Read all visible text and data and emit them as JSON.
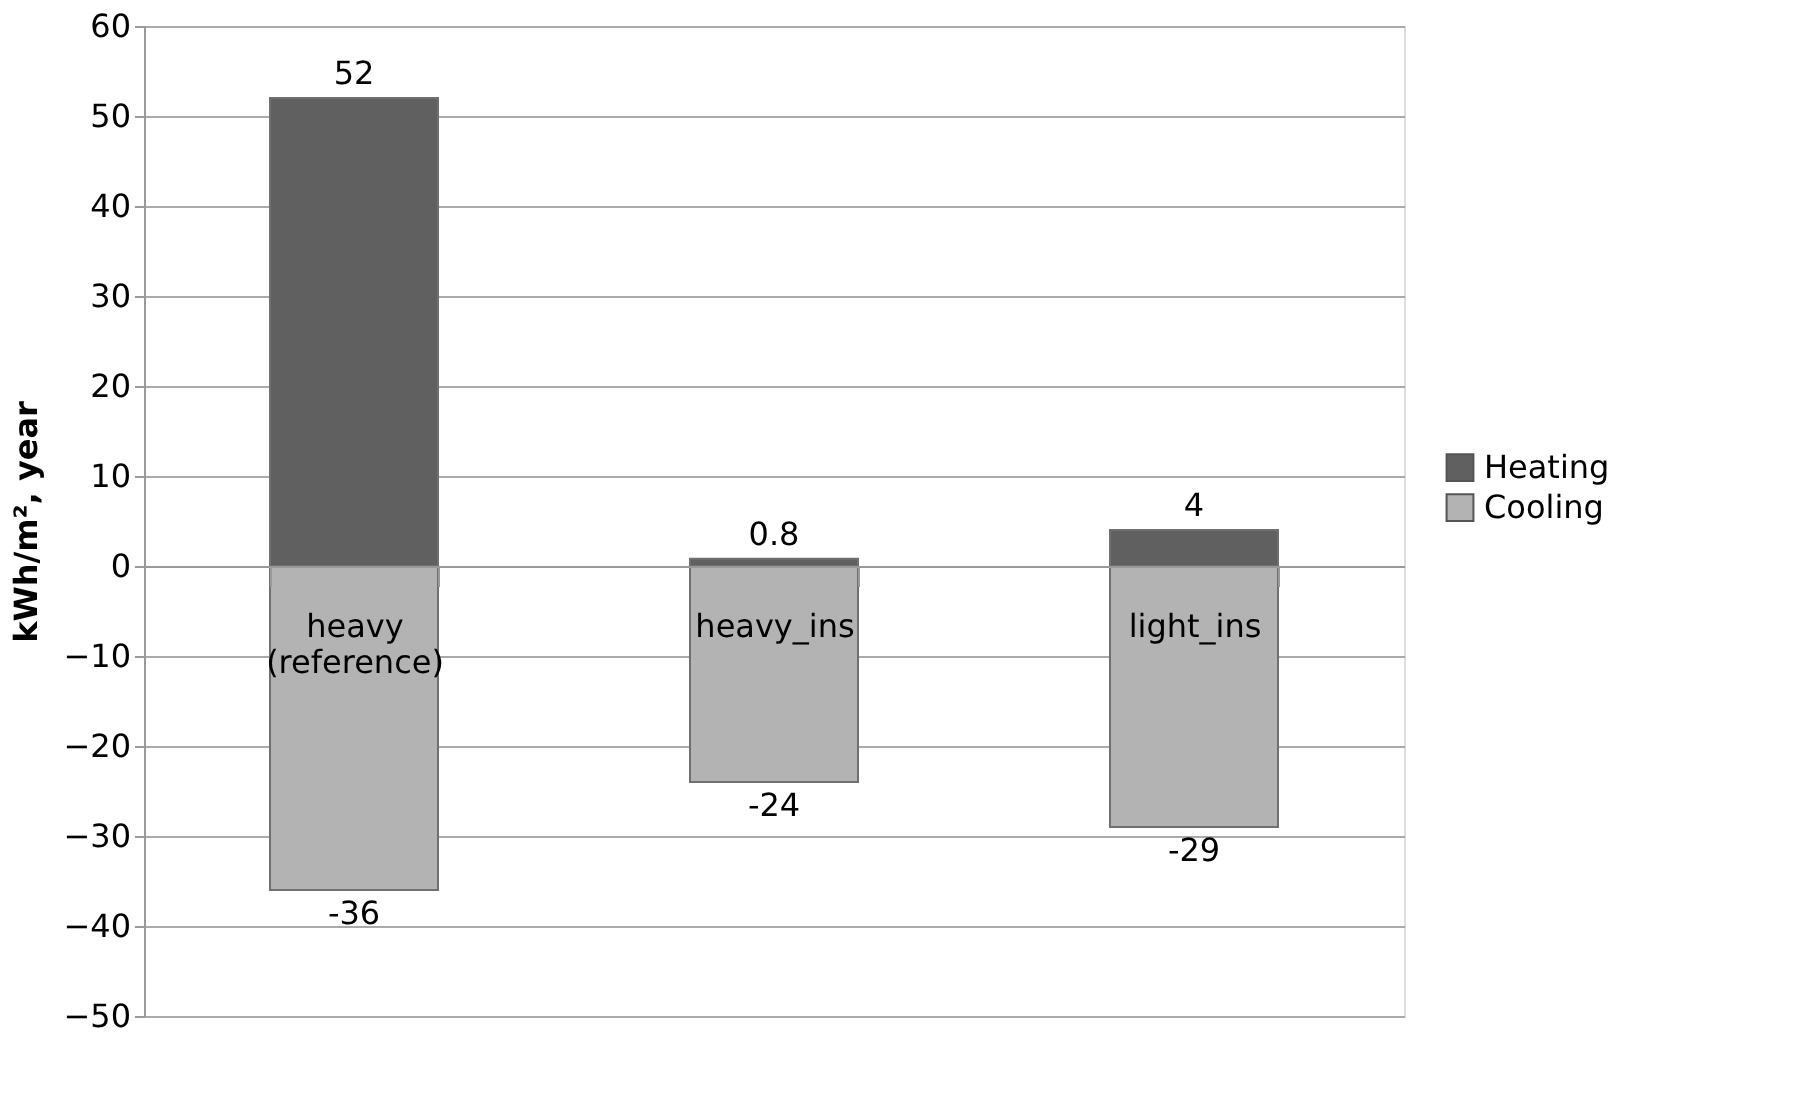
{
  "chart_data": {
    "type": "bar",
    "stacked": true,
    "ylabel": "kWh/m², year",
    "categories": [
      "heavy (reference)",
      "heavy_ins",
      "light_ins"
    ],
    "series": [
      {
        "name": "Heating",
        "color": "#606060",
        "values": [
          52,
          0.8,
          4
        ]
      },
      {
        "name": "Cooling",
        "color": "#b3b3b3",
        "values": [
          -36,
          -24,
          -29
        ]
      }
    ],
    "ylim": [
      -50,
      60
    ],
    "yticks": [
      -50,
      -40,
      -30,
      -20,
      -10,
      0,
      10,
      20,
      30,
      40,
      50,
      60
    ],
    "grid": "y",
    "legend": "right",
    "data_labels": true
  }
}
